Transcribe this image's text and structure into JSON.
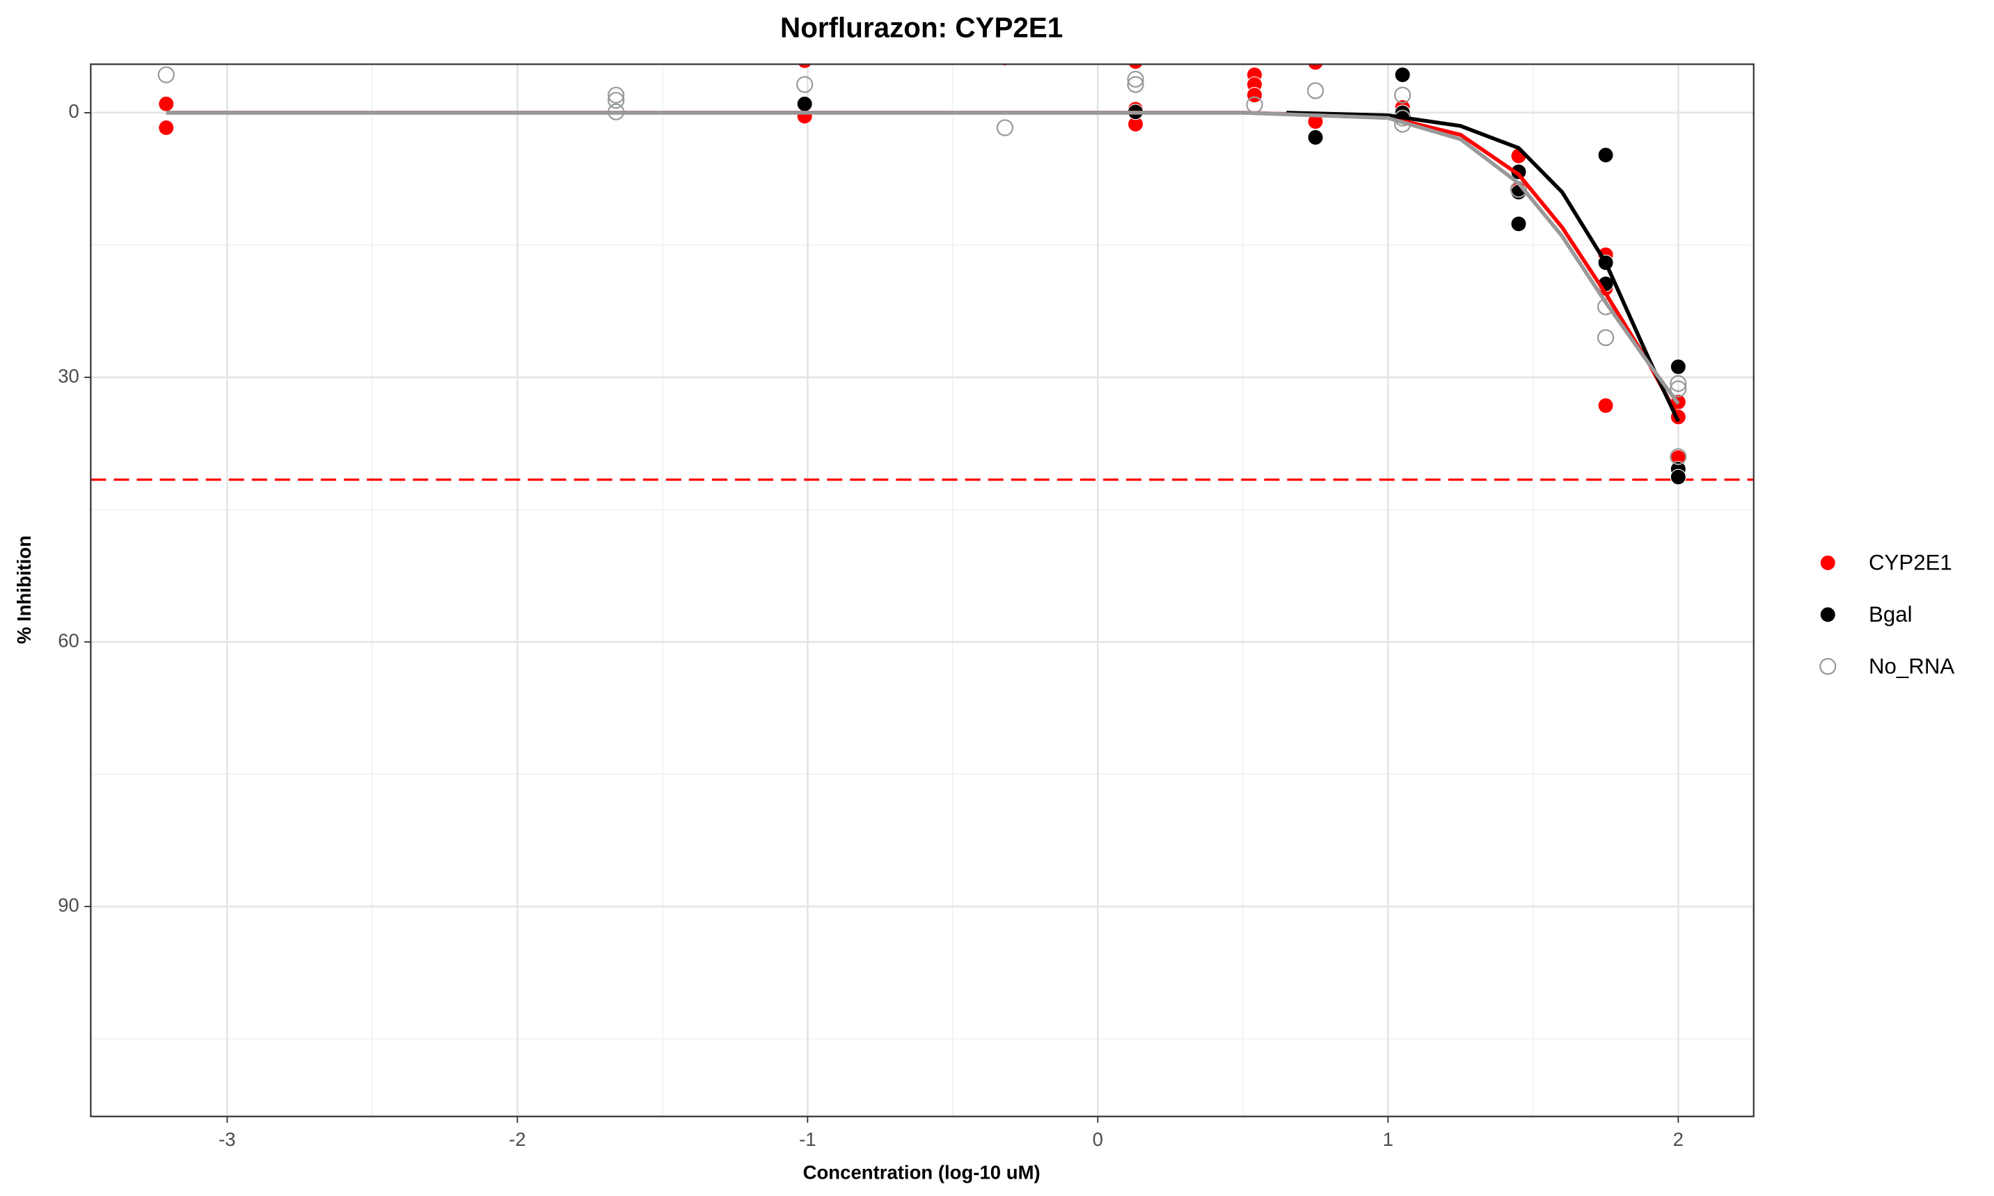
{
  "chart_data": {
    "type": "scatter",
    "title": "Norflurazon: CYP2E1",
    "x_label": "Concentration (log-10 uM)",
    "y_label": "% Inhibition",
    "xlim": [
      -3.47,
      2.26
    ],
    "ylim": [
      -5.5,
      113.8
    ],
    "y_reversed": true,
    "xticks": [
      -3,
      -2,
      -1,
      0,
      1,
      2
    ],
    "yticks": [
      0,
      30,
      60,
      90
    ],
    "grid": true,
    "legend": "right",
    "series": [
      {
        "name": "CYP2E1",
        "color": "#ff0000",
        "fill": "#ff0000",
        "x": [
          -3.21,
          -3.21,
          -1.01,
          -1.01,
          -0.32,
          0.13,
          0.13,
          0.13,
          0.54,
          0.54,
          0.54,
          0.75,
          0.75,
          1.05,
          1.05,
          1.45,
          1.45,
          1.75,
          1.75,
          1.75,
          2.0,
          2.0,
          2.0
        ],
        "values": [
          -1.0,
          1.7,
          -5.9,
          0.4,
          -6.2,
          -5.8,
          -0.4,
          1.3,
          -4.3,
          -3.2,
          -2.0,
          -5.7,
          1.0,
          -0.6,
          0,
          4.9,
          8.6,
          16.1,
          19.9,
          33.2,
          32.8,
          34.5,
          39.1
        ]
      },
      {
        "name": "Bgal",
        "color": "#000000",
        "fill": "#000000",
        "x": [
          -1.01,
          0.13,
          0.75,
          1.05,
          1.05,
          1.45,
          1.45,
          1.45,
          1.75,
          1.75,
          1.75,
          2.0,
          2.0,
          2.0
        ],
        "values": [
          -1.0,
          -0.1,
          2.8,
          -4.3,
          0,
          6.7,
          9.0,
          12.6,
          4.8,
          17.0,
          19.4,
          28.8,
          40.4,
          41.3
        ]
      },
      {
        "name": "No_RNA",
        "color": "#999999",
        "fill": "none",
        "x": [
          -3.21,
          -1.66,
          -1.66,
          -1.66,
          -1.01,
          -0.32,
          0.13,
          0.13,
          0.54,
          0.75,
          1.05,
          1.05,
          1.05,
          1.45,
          1.75,
          1.75,
          2.0,
          2.0,
          2.0
        ],
        "values": [
          -4.3,
          -2.0,
          -1.4,
          -0.1,
          -3.2,
          1.7,
          -3.8,
          -3.2,
          -0.9,
          -2.5,
          -2.0,
          0.6,
          1.3,
          8.7,
          22.0,
          25.5,
          30.7,
          31.3,
          39.0
        ]
      }
    ],
    "curves": [
      {
        "color": "#ff0000",
        "x": [
          -3.21,
          0.5,
          1.0,
          1.25,
          1.45,
          1.6,
          1.75,
          1.9,
          2.0
        ],
        "values": [
          0,
          0,
          0.5,
          2.5,
          7,
          13,
          20.5,
          28.5,
          34.5
        ]
      },
      {
        "color": "#000000",
        "x": [
          0.65,
          1.0,
          1.25,
          1.45,
          1.6,
          1.75,
          1.9,
          2.0
        ],
        "values": [
          0,
          0.3,
          1.5,
          4,
          9,
          17,
          28,
          35
        ]
      },
      {
        "color": "#999999",
        "x": [
          -3.21,
          0.5,
          1.0,
          1.25,
          1.45,
          1.6,
          1.75,
          1.9,
          2.0
        ],
        "values": [
          0,
          0,
          0.6,
          3,
          8,
          14,
          21.5,
          28.5,
          33
        ]
      }
    ],
    "threshold": {
      "value": 41.6,
      "color": "#ff0000"
    }
  }
}
